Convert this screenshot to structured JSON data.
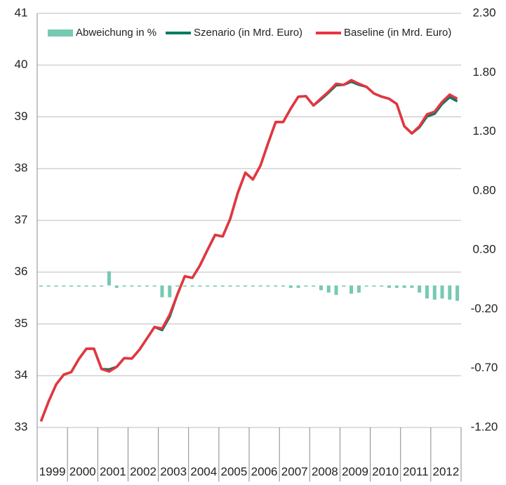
{
  "chart_data": {
    "type": "bar-line",
    "categories": [
      "1999",
      null,
      null,
      null,
      "2000",
      null,
      null,
      null,
      "2001",
      null,
      null,
      null,
      "2002",
      null,
      null,
      null,
      "2003",
      null,
      null,
      null,
      "2004",
      null,
      null,
      null,
      "2005",
      null,
      null,
      null,
      "2006",
      null,
      null,
      null,
      "2007",
      null,
      null,
      null,
      "2008",
      null,
      null,
      null,
      "2009",
      null,
      null,
      null,
      "2010",
      null,
      null,
      null,
      "2011",
      null,
      null,
      null,
      "2012",
      null,
      null,
      null
    ],
    "series": [
      {
        "name": "Abweichung in %",
        "type": "bar",
        "axis": "y2",
        "color": "#76c9b3",
        "values": [
          -0.01,
          -0.01,
          -0.01,
          -0.01,
          -0.01,
          -0.01,
          -0.01,
          -0.01,
          -0.01,
          0.12,
          -0.02,
          -0.01,
          -0.01,
          -0.01,
          -0.01,
          -0.01,
          -0.1,
          -0.1,
          -0.01,
          -0.01,
          -0.01,
          -0.01,
          -0.01,
          -0.01,
          -0.01,
          -0.01,
          -0.01,
          -0.01,
          -0.01,
          -0.01,
          -0.01,
          -0.01,
          -0.01,
          -0.02,
          -0.02,
          -0.01,
          -0.01,
          -0.04,
          -0.06,
          -0.08,
          -0.01,
          -0.07,
          -0.06,
          -0.01,
          -0.01,
          -0.01,
          -0.02,
          -0.02,
          -0.02,
          -0.02,
          -0.06,
          -0.11,
          -0.12,
          -0.11,
          -0.12,
          -0.13
        ]
      },
      {
        "name": "Szenario (in Mrd. Euro)",
        "type": "line",
        "color": "#007a63",
        "values": [
          33.12,
          33.5,
          33.83,
          34.02,
          34.07,
          34.32,
          34.52,
          34.52,
          34.13,
          34.12,
          34.17,
          34.34,
          34.33,
          34.5,
          34.72,
          34.94,
          34.88,
          35.14,
          35.56,
          35.92,
          35.89,
          36.13,
          36.43,
          36.72,
          36.69,
          37.03,
          37.53,
          37.92,
          37.79,
          38.06,
          38.49,
          38.9,
          38.9,
          39.16,
          39.39,
          39.4,
          39.22,
          39.34,
          39.47,
          39.61,
          39.62,
          39.68,
          39.62,
          39.58,
          39.45,
          39.39,
          39.35,
          39.25,
          38.82,
          38.68,
          38.8,
          39.01,
          39.06,
          39.25,
          39.38,
          39.3
        ]
      },
      {
        "name": "Baseline (in Mrd. Euro)",
        "type": "line",
        "color": "#e8343f",
        "values": [
          33.12,
          33.5,
          33.83,
          34.02,
          34.07,
          34.32,
          34.52,
          34.52,
          34.13,
          34.08,
          34.17,
          34.34,
          34.33,
          34.5,
          34.72,
          34.94,
          34.91,
          35.18,
          35.56,
          35.92,
          35.89,
          36.13,
          36.43,
          36.72,
          36.69,
          37.03,
          37.53,
          37.92,
          37.79,
          38.06,
          38.49,
          38.9,
          38.9,
          39.16,
          39.39,
          39.4,
          39.22,
          39.36,
          39.49,
          39.64,
          39.62,
          39.71,
          39.64,
          39.58,
          39.45,
          39.39,
          39.35,
          39.25,
          38.82,
          38.68,
          38.82,
          39.05,
          39.1,
          39.29,
          39.43,
          39.35
        ]
      }
    ],
    "ylim": [
      33,
      41
    ],
    "yticks": [
      33,
      34,
      35,
      36,
      37,
      38,
      39,
      40,
      41
    ],
    "y2lim": [
      -1.2,
      2.3
    ],
    "y2ticks": [
      {
        "value": -1.2,
        "label": "-1.20"
      },
      {
        "value": -0.7,
        "label": "-0.70"
      },
      {
        "value": -0.2,
        "label": "-0.20"
      },
      {
        "value": 0.3,
        "label": "0.30"
      },
      {
        "value": 0.8,
        "label": "0.80"
      },
      {
        "value": 1.3,
        "label": "1.30"
      },
      {
        "value": 1.8,
        "label": "1.80"
      },
      {
        "value": 2.3,
        "label": "2.30"
      }
    ],
    "grid": true,
    "legend": "top"
  }
}
